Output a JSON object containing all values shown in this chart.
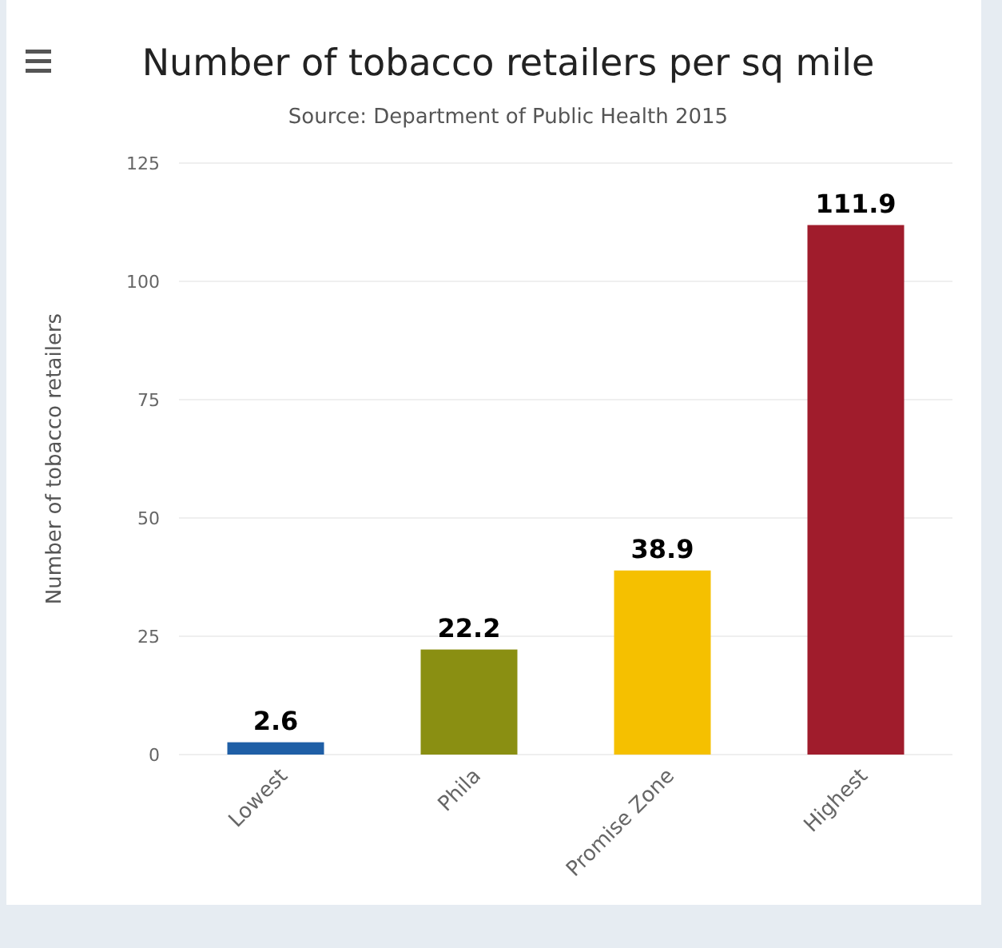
{
  "chart_data": {
    "type": "bar",
    "title": "Number of tobacco retailers per sq mile",
    "subtitle": "Source: Department of Public Health 2015",
    "ylabel": "Number of tobacco retailers",
    "categories": [
      "Lowest",
      "Phila",
      "Promise Zone",
      "Highest"
    ],
    "values": [
      2.6,
      22.2,
      38.9,
      111.9
    ],
    "colors": [
      "#1f5fa6",
      "#8a8f12",
      "#f5c000",
      "#a01c2c"
    ],
    "ylim": [
      0,
      125
    ],
    "yticks": [
      0,
      25,
      50,
      75,
      100,
      125
    ],
    "grid": "y",
    "data_labels": true
  }
}
